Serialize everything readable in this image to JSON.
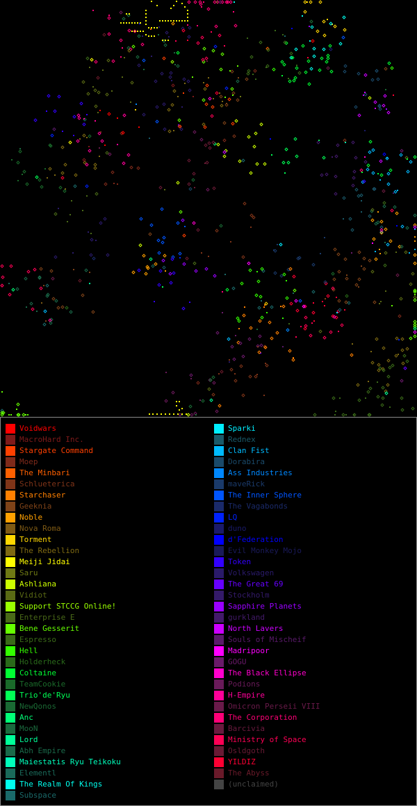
{
  "legend": {
    "left": [
      {
        "name": "Voidwars",
        "color": "#ff0000"
      },
      {
        "name": "MacroHard Inc.",
        "color": "#7f1a1a"
      },
      {
        "name": "Stargate Command",
        "color": "#ff4000"
      },
      {
        "name": "Moep",
        "color": "#7f2a1a"
      },
      {
        "name": "The Minbari",
        "color": "#ff6000"
      },
      {
        "name": "Schlueterica",
        "color": "#7f3418"
      },
      {
        "name": "Starchaser",
        "color": "#ff8000"
      },
      {
        "name": "Geeknia",
        "color": "#7f4318"
      },
      {
        "name": "Noble",
        "color": "#ffa000"
      },
      {
        "name": "Nova Roma",
        "color": "#7f5a14"
      },
      {
        "name": "Torment",
        "color": "#ffd700"
      },
      {
        "name": "The Rebellion",
        "color": "#7f6a12"
      },
      {
        "name": "Meiji Jidai",
        "color": "#ffff00"
      },
      {
        "name": "Saru",
        "color": "#6f7a14"
      },
      {
        "name": "Ashliana",
        "color": "#ccff00"
      },
      {
        "name": "Vidiot",
        "color": "#5a6a14"
      },
      {
        "name": "Support STCCG Online!",
        "color": "#99ff00"
      },
      {
        "name": "Enterprise E",
        "color": "#4a6a18"
      },
      {
        "name": "Bene Gesserit",
        "color": "#66ff00"
      },
      {
        "name": "Espresso",
        "color": "#3a6a18"
      },
      {
        "name": "Hell",
        "color": "#33ff00"
      },
      {
        "name": "Holderheck",
        "color": "#2a6a1a"
      },
      {
        "name": "Coltaine",
        "color": "#00ff33"
      },
      {
        "name": "TeamCookie",
        "color": "#1a6a2a"
      },
      {
        "name": "Trio'de'Ryu",
        "color": "#00ff55"
      },
      {
        "name": "NewQonos",
        "color": "#1a6a34"
      },
      {
        "name": "Anc",
        "color": "#00ff77"
      },
      {
        "name": "MooN",
        "color": "#1a6a3e"
      },
      {
        "name": "Lord",
        "color": "#00ff99"
      },
      {
        "name": "Abh Empire",
        "color": "#1a6a4a"
      },
      {
        "name": "Maiestatis Ryu Teikoku",
        "color": "#00ffbb"
      },
      {
        "name": "Elementl",
        "color": "#1a6a5a"
      },
      {
        "name": "The Realm Of Kings",
        "color": "#00ffee"
      },
      {
        "name": "Subspace",
        "color": "#1a6a6a"
      }
    ],
    "right": [
      {
        "name": "Sparki",
        "color": "#00eeff"
      },
      {
        "name": "Rednex",
        "color": "#1a5a6a"
      },
      {
        "name": "Clan Fist",
        "color": "#00bbff"
      },
      {
        "name": "Dorabira",
        "color": "#1a4a6a"
      },
      {
        "name": "Ass Industries",
        "color": "#0088ff"
      },
      {
        "name": "maveRick",
        "color": "#1a3a6a"
      },
      {
        "name": "The Inner Sphere",
        "color": "#0055ff"
      },
      {
        "name": "The Vagabonds",
        "color": "#1a2a6a"
      },
      {
        "name": "LQ",
        "color": "#0022ff"
      },
      {
        "name": "duno",
        "color": "#1a1a6a"
      },
      {
        "name": "d'Federation",
        "color": "#0000ff"
      },
      {
        "name": "Evil Monkey Mojo",
        "color": "#1a1a5a"
      },
      {
        "name": "Token",
        "color": "#3300ff"
      },
      {
        "name": "Volkswagen",
        "color": "#2a1a6a"
      },
      {
        "name": "The Great 69",
        "color": "#6600ff"
      },
      {
        "name": "Stockholm",
        "color": "#341a6a"
      },
      {
        "name": "Sapphire Planets",
        "color": "#9900ff"
      },
      {
        "name": "gurkland",
        "color": "#431a6a"
      },
      {
        "name": "North Lavers",
        "color": "#cc00ff"
      },
      {
        "name": "Souls of Mischeif",
        "color": "#5a1a6a"
      },
      {
        "name": "Madripoor",
        "color": "#ff00ff"
      },
      {
        "name": "GOGU",
        "color": "#6a1a6a"
      },
      {
        "name": "The Black Ellipse",
        "color": "#ff00cc"
      },
      {
        "name": "Podions",
        "color": "#6a1a5a"
      },
      {
        "name": "H-Empire",
        "color": "#ff0099"
      },
      {
        "name": "Omicron Perseii VIII",
        "color": "#6a1a4a"
      },
      {
        "name": "The Corporation",
        "color": "#ff0077"
      },
      {
        "name": "Barcivia",
        "color": "#6a1a3e"
      },
      {
        "name": "Ministry of Space",
        "color": "#ff0055"
      },
      {
        "name": "Osldgoth",
        "color": "#6a1a34"
      },
      {
        "name": "YILDIZ",
        "color": "#ff0033"
      },
      {
        "name": "The Abyss",
        "color": "#6a1a2a"
      },
      {
        "name": "(unclaimed)",
        "color": "#444444"
      }
    ]
  }
}
